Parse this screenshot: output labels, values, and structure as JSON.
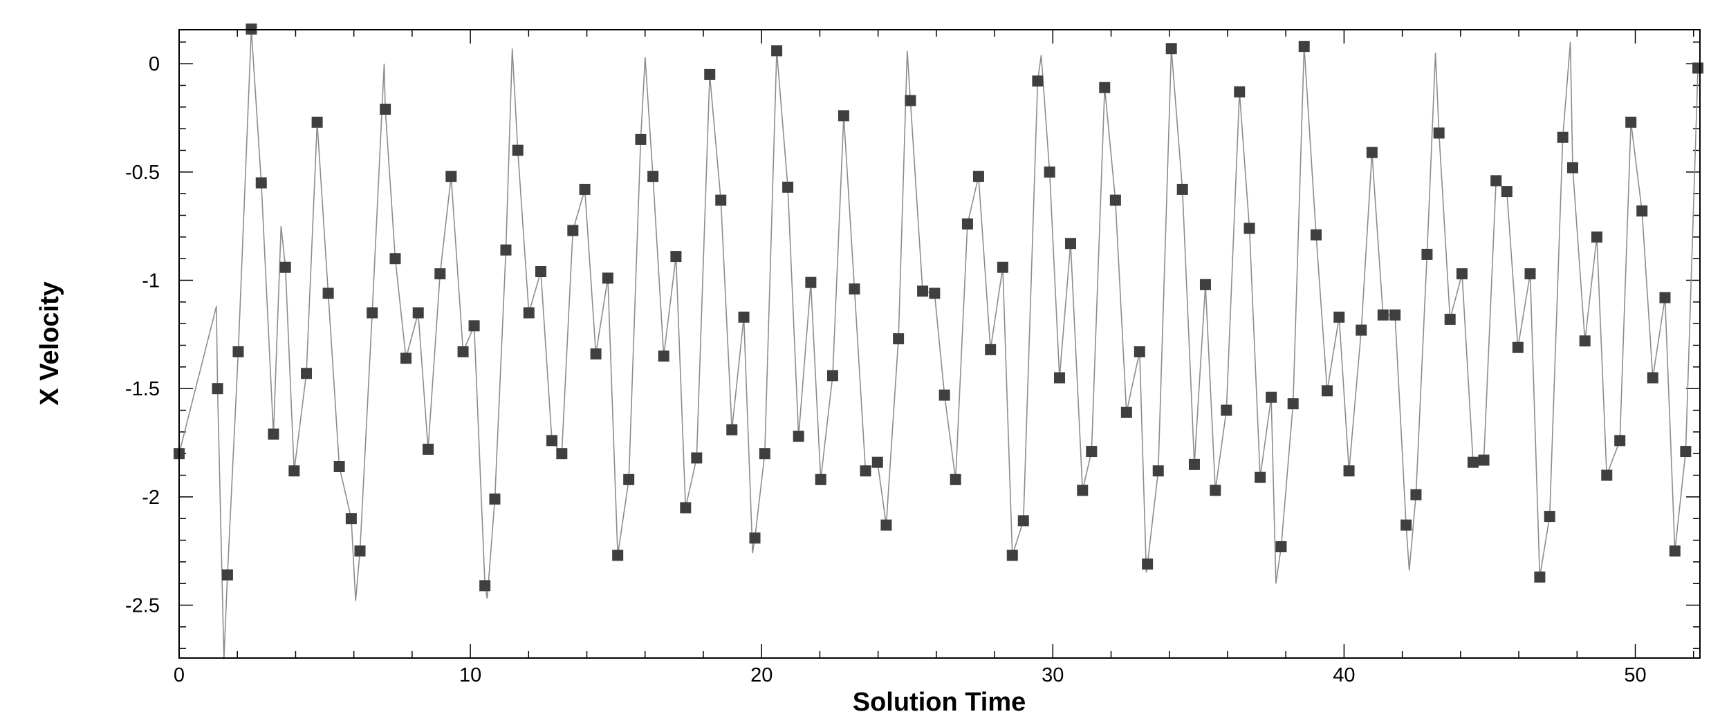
{
  "chart_data": {
    "type": "line",
    "x_label": "Solution Time",
    "y_label": "X Velocity",
    "xlim": [
      0,
      52.22
    ],
    "ylim": [
      -2.744,
      0.157
    ],
    "xticks": [
      0,
      10,
      20,
      30,
      40,
      50
    ],
    "yticks": [
      0,
      -0.5,
      -1,
      -1.5,
      -2,
      -2.5
    ],
    "xticks_minor": [
      2,
      4,
      6,
      8,
      12,
      14,
      16,
      18,
      22,
      24,
      26,
      28,
      32,
      34,
      36,
      38,
      42,
      44,
      46,
      48,
      52
    ],
    "yticks_minor": [
      0.1,
      -0.1,
      -0.2,
      -0.3,
      -0.4,
      -0.6,
      -0.7,
      -0.8,
      -0.9,
      -1.1,
      -1.2,
      -1.3,
      -1.4,
      -1.6,
      -1.7,
      -1.8,
      -1.9,
      -2.1,
      -2.2,
      -2.3,
      -2.4,
      -2.6,
      -2.7
    ],
    "grid": false,
    "series": [
      {
        "color": "#8c8c8c",
        "marker": "none",
        "line": true,
        "x": [
          0,
          1.28,
          1.32,
          1.54,
          1.66,
          2.03,
          2.48,
          2.82,
          3.24,
          3.5,
          3.65,
          3.95,
          4.37,
          4.74,
          5.12,
          5.5,
          5.91,
          6.06,
          6.21,
          6.63,
          7.04,
          7.08,
          7.42,
          7.79,
          8.21,
          8.55,
          8.96,
          9.34,
          9.75,
          10.13,
          10.5,
          10.58,
          10.84,
          11.22,
          11.44,
          11.63,
          12.01,
          12.42,
          12.8,
          13.14,
          13.52,
          13.93,
          14.31,
          14.72,
          15.06,
          15.44,
          15.85,
          16.0,
          16.27,
          16.64,
          17.06,
          17.39,
          17.77,
          18.22,
          18.6,
          18.98,
          19.39,
          19.69,
          19.77,
          20.11,
          20.52,
          20.9,
          21.27,
          21.69,
          22.03,
          22.44,
          22.82,
          23.19,
          23.57,
          23.98,
          24.28,
          24.7,
          25.0,
          25.11,
          25.53,
          25.94,
          26.28,
          26.66,
          27.07,
          27.45,
          27.86,
          28.28,
          28.61,
          28.99,
          29.48,
          29.6,
          29.89,
          30.23,
          30.61,
          31.02,
          31.33,
          31.78,
          32.15,
          32.53,
          32.98,
          33.21,
          33.25,
          33.62,
          34.07,
          34.45,
          34.86,
          35.24,
          35.58,
          35.96,
          36.41,
          36.75,
          37.12,
          37.5,
          37.66,
          37.84,
          38.25,
          38.63,
          39.04,
          39.42,
          39.83,
          40.17,
          40.59,
          40.96,
          41.34,
          41.75,
          42.13,
          42.24,
          42.47,
          42.85,
          43.14,
          43.26,
          43.64,
          44.05,
          44.43,
          44.8,
          45.22,
          45.59,
          45.97,
          46.39,
          46.72,
          47.06,
          47.51,
          47.77,
          47.85,
          48.27,
          48.68,
          49.02,
          49.47,
          49.85,
          50.23,
          50.6,
          51.02,
          51.36,
          51.73,
          52.15
        ],
        "values": [
          -1.8,
          -1.12,
          -1.5,
          -2.75,
          -2.36,
          -1.33,
          0.16,
          -0.55,
          -1.71,
          -0.75,
          -0.94,
          -1.88,
          -1.43,
          -0.27,
          -1.06,
          -1.86,
          -2.1,
          -2.48,
          -2.25,
          -1.15,
          0.0,
          -0.21,
          -0.9,
          -1.36,
          -1.15,
          -1.78,
          -0.97,
          -0.52,
          -1.33,
          -1.21,
          -2.41,
          -2.47,
          -2.01,
          -0.86,
          0.07,
          -0.4,
          -1.15,
          -0.96,
          -1.74,
          -1.8,
          -0.77,
          -0.58,
          -1.34,
          -0.99,
          -2.27,
          -1.92,
          -0.35,
          0.03,
          -0.52,
          -1.35,
          -0.89,
          -2.05,
          -1.82,
          -0.05,
          -0.63,
          -1.69,
          -1.17,
          -2.26,
          -2.19,
          -1.8,
          0.06,
          -0.57,
          -1.72,
          -1.01,
          -1.92,
          -1.44,
          -0.24,
          -1.04,
          -1.88,
          -1.84,
          -2.13,
          -1.27,
          0.06,
          -0.17,
          -1.05,
          -1.06,
          -1.53,
          -1.92,
          -0.74,
          -0.52,
          -1.32,
          -0.94,
          -2.27,
          -2.11,
          -0.08,
          0.04,
          -0.5,
          -1.45,
          -0.83,
          -1.97,
          -1.79,
          -0.11,
          -0.63,
          -1.61,
          -1.33,
          -2.35,
          -2.31,
          -1.88,
          0.07,
          -0.58,
          -1.85,
          -1.02,
          -1.97,
          -1.6,
          -0.13,
          -0.76,
          -1.91,
          -1.54,
          -2.4,
          -2.23,
          -1.57,
          0.08,
          -0.79,
          -1.51,
          -1.17,
          -1.88,
          -1.23,
          -0.41,
          -1.16,
          -1.16,
          -2.13,
          -2.34,
          -1.99,
          -0.88,
          0.05,
          -0.32,
          -1.18,
          -0.97,
          -1.84,
          -1.83,
          -0.54,
          -0.59,
          -1.31,
          -0.97,
          -2.37,
          -2.09,
          -0.34,
          0.1,
          -0.48,
          -1.28,
          -0.8,
          -1.9,
          -1.74,
          -0.27,
          -0.68,
          -1.45,
          -1.08,
          -2.25,
          -1.79,
          -0.02
        ]
      },
      {
        "color": "#3f3f3f",
        "marker": "square",
        "line": false,
        "x": [
          0,
          1.32,
          1.66,
          2.03,
          2.48,
          2.82,
          3.24,
          3.65,
          3.95,
          4.37,
          4.74,
          5.12,
          5.5,
          5.91,
          6.21,
          6.63,
          7.08,
          7.42,
          7.79,
          8.21,
          8.55,
          8.96,
          9.34,
          9.75,
          10.13,
          10.5,
          10.84,
          11.22,
          11.63,
          12.01,
          12.42,
          12.8,
          13.14,
          13.52,
          13.93,
          14.31,
          14.72,
          15.06,
          15.44,
          15.85,
          16.27,
          16.64,
          17.06,
          17.39,
          17.77,
          18.22,
          18.6,
          18.98,
          19.39,
          19.77,
          20.11,
          20.52,
          20.9,
          21.27,
          21.69,
          22.03,
          22.44,
          22.82,
          23.19,
          23.57,
          23.98,
          24.28,
          24.7,
          25.11,
          25.53,
          25.94,
          26.28,
          26.66,
          27.07,
          27.45,
          27.86,
          28.28,
          28.61,
          28.99,
          29.48,
          29.89,
          30.23,
          30.61,
          31.02,
          31.33,
          31.78,
          32.15,
          32.53,
          32.98,
          33.25,
          33.62,
          34.07,
          34.45,
          34.86,
          35.24,
          35.58,
          35.96,
          36.41,
          36.75,
          37.12,
          37.5,
          37.84,
          38.25,
          38.63,
          39.04,
          39.42,
          39.83,
          40.17,
          40.59,
          40.96,
          41.34,
          41.75,
          42.13,
          42.47,
          42.85,
          43.26,
          43.64,
          44.05,
          44.43,
          44.8,
          45.22,
          45.59,
          45.97,
          46.39,
          46.72,
          47.06,
          47.51,
          47.85,
          48.27,
          48.68,
          49.02,
          49.47,
          49.85,
          50.23,
          50.6,
          51.02,
          51.36,
          51.73,
          52.15
        ],
        "values": [
          -1.8,
          -1.5,
          -2.36,
          -1.33,
          0.16,
          -0.55,
          -1.71,
          -0.94,
          -1.88,
          -1.43,
          -0.27,
          -1.06,
          -1.86,
          -2.1,
          -2.25,
          -1.15,
          -0.21,
          -0.9,
          -1.36,
          -1.15,
          -1.78,
          -0.97,
          -0.52,
          -1.33,
          -1.21,
          -2.41,
          -2.01,
          -0.86,
          -0.4,
          -1.15,
          -0.96,
          -1.74,
          -1.8,
          -0.77,
          -0.58,
          -1.34,
          -0.99,
          -2.27,
          -1.92,
          -0.35,
          -0.52,
          -1.35,
          -0.89,
          -2.05,
          -1.82,
          -0.05,
          -0.63,
          -1.69,
          -1.17,
          -2.19,
          -1.8,
          0.06,
          -0.57,
          -1.72,
          -1.01,
          -1.92,
          -1.44,
          -0.24,
          -1.04,
          -1.88,
          -1.84,
          -2.13,
          -1.27,
          -0.17,
          -1.05,
          -1.06,
          -1.53,
          -1.92,
          -0.74,
          -0.52,
          -1.32,
          -0.94,
          -2.27,
          -2.11,
          -0.08,
          -0.5,
          -1.45,
          -0.83,
          -1.97,
          -1.79,
          -0.11,
          -0.63,
          -1.61,
          -1.33,
          -2.31,
          -1.88,
          0.07,
          -0.58,
          -1.85,
          -1.02,
          -1.97,
          -1.6,
          -0.13,
          -0.76,
          -1.91,
          -1.54,
          -2.23,
          -1.57,
          0.08,
          -0.79,
          -1.51,
          -1.17,
          -1.88,
          -1.23,
          -0.41,
          -1.16,
          -1.16,
          -2.13,
          -1.99,
          -0.88,
          -0.32,
          -1.18,
          -0.97,
          -1.84,
          -1.83,
          -0.54,
          -0.59,
          -1.31,
          -0.97,
          -2.37,
          -2.09,
          -0.34,
          -0.48,
          -1.28,
          -0.8,
          -1.9,
          -1.74,
          -0.27,
          -0.68,
          -1.45,
          -1.08,
          -2.25,
          -1.79,
          -0.02
        ]
      }
    ]
  }
}
